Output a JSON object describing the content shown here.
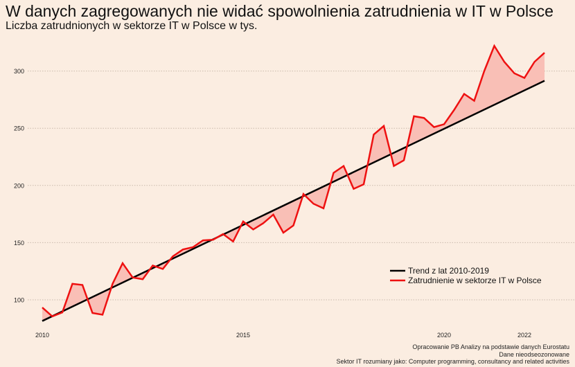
{
  "chart_data": {
    "type": "line",
    "title": "W danych zagregowanych nie widać spowolnienia zatrudnienia w IT w Polsce",
    "subtitle": "Liczba zatrudnionych w sektorze IT w Polsce w tys.",
    "xlabel": "",
    "ylabel": "",
    "ylim": [
      70,
      330
    ],
    "xlim": [
      2009.5,
      2023.2
    ],
    "grid": true,
    "legend_position": "bottom-right",
    "y_ticks": [
      "100",
      "150",
      "200",
      "250",
      "300"
    ],
    "y_tick_values": [
      100,
      150,
      200,
      250,
      300
    ],
    "x_ticks": [
      "2010",
      "2015",
      "2020",
      "2022"
    ],
    "x_tick_values": [
      2010,
      2015,
      2020,
      2022
    ],
    "x": [
      2010.0,
      2010.25,
      2010.5,
      2010.75,
      2011.0,
      2011.25,
      2011.5,
      2011.75,
      2012.0,
      2012.25,
      2012.5,
      2012.75,
      2013.0,
      2013.25,
      2013.5,
      2013.75,
      2014.0,
      2014.25,
      2014.5,
      2014.75,
      2015.0,
      2015.25,
      2015.5,
      2015.75,
      2016.0,
      2016.25,
      2016.5,
      2016.75,
      2017.0,
      2017.25,
      2017.5,
      2017.75,
      2018.0,
      2018.25,
      2018.5,
      2018.75,
      2019.0,
      2019.25,
      2019.5,
      2019.75,
      2020.0,
      2020.25,
      2020.5,
      2020.75,
      2021.0,
      2021.25,
      2021.5,
      2021.75,
      2022.0,
      2022.25,
      2022.5
    ],
    "series": [
      {
        "name": "Trend z lat 2010-2019",
        "color": "#000000",
        "start": 81.5,
        "end": 291.5
      },
      {
        "name": "Zatrudnienie w sektorze IT w Polsce",
        "color": "#ee1111",
        "values": [
          93.3,
          85.5,
          89,
          114,
          113,
          88.5,
          87,
          114,
          132,
          119.5,
          118,
          130,
          127,
          138,
          144,
          146,
          152,
          152.5,
          157.5,
          151,
          168.5,
          161.5,
          167,
          174.5,
          158.7,
          165,
          192.5,
          184,
          180,
          211,
          217,
          197,
          201,
          244.5,
          252,
          217,
          222,
          260.5,
          259,
          251,
          253.5,
          266,
          280,
          274,
          300,
          322,
          308,
          298,
          294,
          308,
          316
        ]
      }
    ],
    "fill_color": "#f9bfb6",
    "caption": [
      "Opracowanie PB Analizy na podstawie danych Eurostatu",
      "Dane nieodseozonowane",
      "Sektor IT rozumiany jako: Computer programming, consultancy and related activities"
    ]
  }
}
